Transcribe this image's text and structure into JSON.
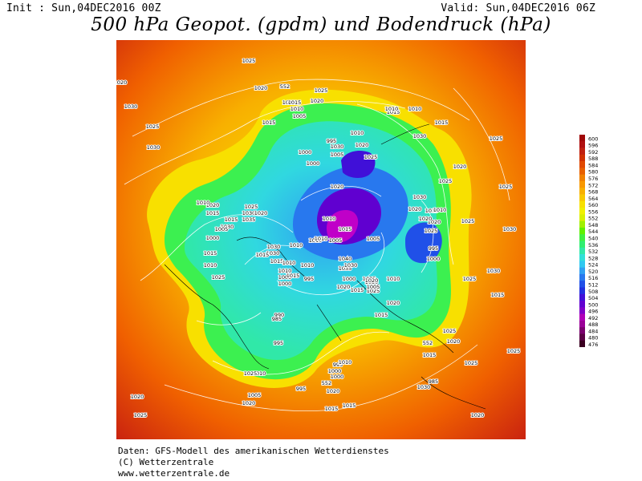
{
  "header": {
    "init": "Init : Sun,04DEC2016 00Z",
    "valid": "Valid: Sun,04DEC2016 06Z",
    "title": "500 hPa Geopot. (gpdm) und Bodendruck (hPa)"
  },
  "footer": {
    "line1": "Daten: GFS-Modell des amerikanischen Wetterdienstes",
    "line2": "(C) Wetterzentrale",
    "line3": "www.wetterzentrale.de"
  },
  "legend": {
    "levels": [
      "476",
      "480",
      "484",
      "488",
      "492",
      "496",
      "500",
      "504",
      "508",
      "512",
      "516",
      "520",
      "524",
      "528",
      "532",
      "536",
      "540",
      "544",
      "548",
      "552",
      "556",
      "560",
      "564",
      "568",
      "572",
      "576",
      "580",
      "584",
      "588",
      "592",
      "596",
      "600"
    ],
    "colors": [
      "#3a0020",
      "#5a0045",
      "#7a006e",
      "#9a0098",
      "#b000b8",
      "#8000c8",
      "#6000d0",
      "#4010d8",
      "#2030e0",
      "#2050e8",
      "#2878ee",
      "#2fa0f2",
      "#30c8f0",
      "#30e0d8",
      "#30e8a8",
      "#30ee70",
      "#40f040",
      "#60f000",
      "#a0f000",
      "#d8f000",
      "#f0f000",
      "#f8e000",
      "#f8c800",
      "#f8b000",
      "#f89800",
      "#f08000",
      "#e86000",
      "#e04800",
      "#d03000",
      "#c02010",
      "#b01010",
      "#a00808"
    ]
  },
  "map": {
    "isobar_labels": [
      {
        "t": "1025"
      },
      {
        "t": "1020"
      },
      {
        "t": "1015"
      },
      {
        "t": "552"
      },
      {
        "t": "1025"
      },
      {
        "t": "1020"
      },
      {
        "t": "1015"
      },
      {
        "t": "1010"
      },
      {
        "t": "1005"
      },
      {
        "t": "1015"
      },
      {
        "t": "1015"
      },
      {
        "t": "1015"
      },
      {
        "t": "1010"
      },
      {
        "t": "1015"
      },
      {
        "t": "1030"
      },
      {
        "t": "1030"
      },
      {
        "t": "1025"
      },
      {
        "t": "1020"
      },
      {
        "t": "1025"
      },
      {
        "t": "1030"
      },
      {
        "t": "1025"
      },
      {
        "t": "1020"
      },
      {
        "t": "1010"
      },
      {
        "t": "1030"
      },
      {
        "t": "1000"
      },
      {
        "t": "1005"
      },
      {
        "t": "995"
      },
      {
        "t": "1000"
      },
      {
        "t": "1020"
      },
      {
        "t": "1025"
      },
      {
        "t": "1010"
      },
      {
        "t": "1020"
      },
      {
        "t": "1010"
      },
      {
        "t": "1005"
      },
      {
        "t": "1015"
      },
      {
        "t": "1010"
      },
      {
        "t": "1040"
      },
      {
        "t": "1035"
      },
      {
        "t": "1030"
      },
      {
        "t": "1035"
      },
      {
        "t": "1030"
      },
      {
        "t": "1020"
      },
      {
        "t": "1015"
      },
      {
        "t": "1025"
      },
      {
        "t": "1020"
      },
      {
        "t": "1030"
      },
      {
        "t": "1025"
      },
      {
        "t": "1015"
      },
      {
        "t": "1025"
      },
      {
        "t": "1030"
      },
      {
        "t": "1020"
      },
      {
        "t": "1010"
      },
      {
        "t": "1020"
      },
      {
        "t": "1030"
      },
      {
        "t": "1020"
      },
      {
        "t": "1015"
      },
      {
        "t": "1005"
      },
      {
        "t": "1010"
      },
      {
        "t": "1000"
      },
      {
        "t": "1015"
      },
      {
        "t": "1010"
      },
      {
        "t": "1025"
      },
      {
        "t": "1015"
      },
      {
        "t": "1030"
      },
      {
        "t": "1035"
      },
      {
        "t": "1025"
      },
      {
        "t": "1020"
      },
      {
        "t": "1015"
      },
      {
        "t": "1010"
      },
      {
        "t": "1005"
      },
      {
        "t": "1000"
      },
      {
        "t": "1015"
      },
      {
        "t": "1010"
      },
      {
        "t": "995"
      },
      {
        "t": "1000"
      },
      {
        "t": "1005"
      },
      {
        "t": "1010"
      },
      {
        "t": "1010"
      },
      {
        "t": "1030"
      },
      {
        "t": "1030"
      },
      {
        "t": "1015"
      },
      {
        "t": "1020"
      },
      {
        "t": "1025"
      },
      {
        "t": "1015"
      },
      {
        "t": "995"
      },
      {
        "t": "1000"
      },
      {
        "t": "990"
      },
      {
        "t": "985"
      },
      {
        "t": "995"
      },
      {
        "t": "1010"
      },
      {
        "t": "1005"
      },
      {
        "t": "1020"
      },
      {
        "t": "1025"
      },
      {
        "t": "1030"
      },
      {
        "t": "552"
      },
      {
        "t": "1025"
      },
      {
        "t": "1020"
      },
      {
        "t": "985"
      },
      {
        "t": "995"
      },
      {
        "t": "1000"
      },
      {
        "t": "1010"
      },
      {
        "t": "1015"
      },
      {
        "t": "1000"
      },
      {
        "t": "552"
      },
      {
        "t": "995"
      },
      {
        "t": "1005"
      },
      {
        "t": "1010"
      },
      {
        "t": "1020"
      },
      {
        "t": "1015"
      },
      {
        "t": "1015"
      },
      {
        "t": "1025"
      },
      {
        "t": "1020"
      },
      {
        "t": "1025"
      },
      {
        "t": "1030"
      },
      {
        "t": "1025"
      },
      {
        "t": "1020"
      },
      {
        "t": "1015"
      },
      {
        "t": "1020"
      },
      {
        "t": "1025"
      },
      {
        "t": "1030"
      },
      {
        "t": "1035"
      },
      {
        "t": "1010"
      }
    ]
  }
}
